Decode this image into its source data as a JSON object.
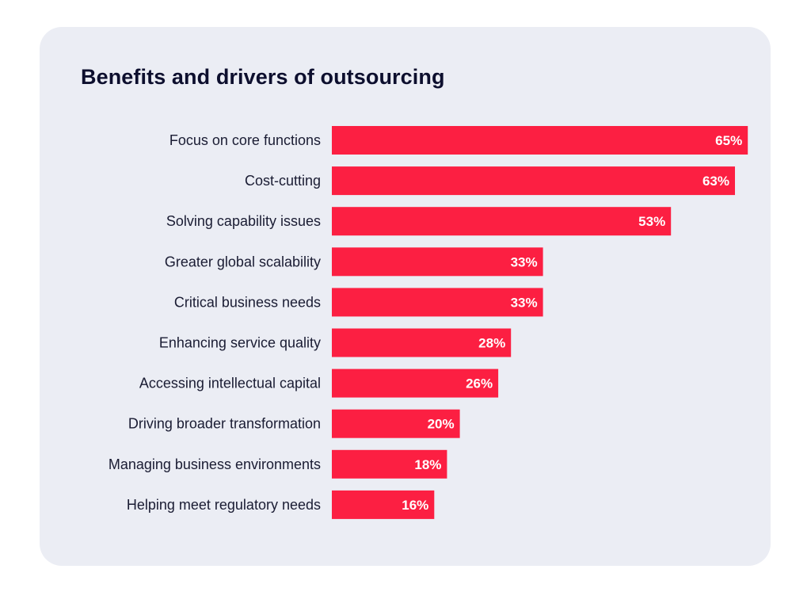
{
  "chart_data": {
    "type": "bar",
    "orientation": "horizontal",
    "title": "Benefits and drivers of outsourcing",
    "categories": [
      "Focus on core functions",
      "Cost-cutting",
      "Solving capability issues",
      "Greater global scalability",
      "Critical business needs",
      "Enhancing service quality",
      "Accessing intellectual capital",
      "Driving broader transformation",
      "Managing business environments",
      "Helping meet regulatory needs"
    ],
    "values": [
      65,
      63,
      53,
      33,
      33,
      28,
      26,
      20,
      18,
      16
    ],
    "value_labels": [
      "65%",
      "63%",
      "53%",
      "33%",
      "33%",
      "28%",
      "26%",
      "20%",
      "18%",
      "16%"
    ],
    "unit": "%",
    "xlabel": "",
    "ylabel": "",
    "grid": false,
    "legend": "none",
    "colors": {
      "bar": "#fc1f42",
      "background": "#ebedf4",
      "title": "#0d0f2e",
      "label": "#1a1c33",
      "value_label": "#ffffff"
    }
  }
}
